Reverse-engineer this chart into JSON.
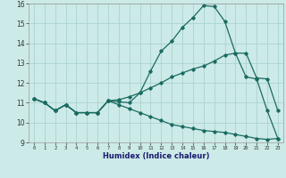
{
  "xlabel": "Humidex (Indice chaleur)",
  "bg_color": "#cceae8",
  "grid_color": "#aad4d0",
  "line_color": "#1a6b60",
  "xlim": [
    -0.5,
    23.5
  ],
  "ylim": [
    9,
    16
  ],
  "xticks": [
    0,
    1,
    2,
    3,
    4,
    5,
    6,
    7,
    8,
    9,
    10,
    11,
    12,
    13,
    14,
    15,
    16,
    17,
    18,
    19,
    20,
    21,
    22,
    23
  ],
  "yticks": [
    9,
    10,
    11,
    12,
    13,
    14,
    15,
    16
  ],
  "series": {
    "line1_x": [
      0,
      1,
      2,
      3,
      4,
      5,
      6,
      7,
      8,
      9,
      10,
      11,
      12,
      13,
      14,
      15,
      16,
      17,
      18,
      19,
      20,
      21,
      22,
      23
    ],
    "line1_y": [
      11.2,
      11.0,
      10.6,
      10.9,
      10.5,
      10.5,
      10.5,
      11.1,
      11.05,
      11.0,
      11.5,
      12.6,
      13.6,
      14.1,
      14.8,
      15.3,
      15.9,
      15.85,
      15.1,
      13.5,
      12.3,
      12.2,
      10.6,
      9.2
    ],
    "line2_x": [
      0,
      1,
      2,
      3,
      4,
      5,
      6,
      7,
      8,
      9,
      10,
      11,
      12,
      13,
      14,
      15,
      16,
      17,
      18,
      19,
      20,
      21,
      22,
      23
    ],
    "line2_y": [
      11.2,
      11.0,
      10.6,
      10.9,
      10.5,
      10.5,
      10.5,
      11.1,
      11.15,
      11.3,
      11.5,
      11.75,
      12.0,
      12.3,
      12.5,
      12.7,
      12.85,
      13.1,
      13.4,
      13.5,
      13.5,
      12.25,
      12.2,
      10.6
    ],
    "line3_x": [
      0,
      1,
      2,
      3,
      4,
      5,
      6,
      7,
      8,
      9,
      10,
      11,
      12,
      13,
      14,
      15,
      16,
      17,
      18,
      19,
      20,
      21,
      22,
      23
    ],
    "line3_y": [
      11.2,
      11.0,
      10.6,
      10.9,
      10.5,
      10.5,
      10.5,
      11.1,
      10.9,
      10.7,
      10.5,
      10.3,
      10.1,
      9.9,
      9.8,
      9.7,
      9.6,
      9.55,
      9.5,
      9.4,
      9.3,
      9.2,
      9.15,
      9.2
    ]
  }
}
